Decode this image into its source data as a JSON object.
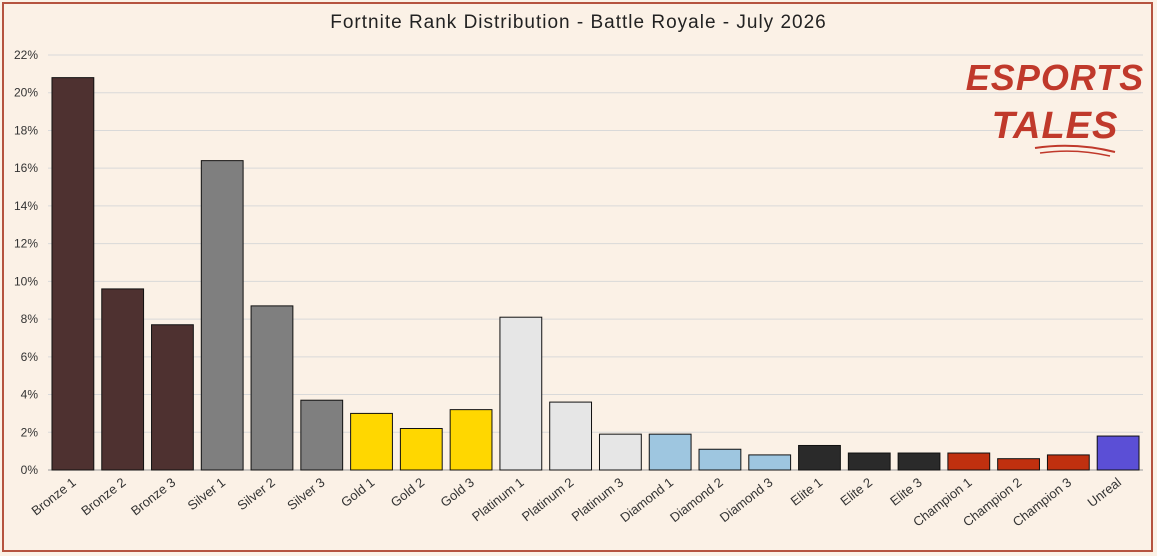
{
  "chart_data": {
    "type": "bar",
    "title": "Fortnite Rank Distribution - Battle Royale - July 2026",
    "categories": [
      "Bronze 1",
      "Bronze 2",
      "Bronze 3",
      "Silver 1",
      "Silver 2",
      "Silver 3",
      "Gold 1",
      "Gold 2",
      "Gold 3",
      "Platinum 1",
      "Platinum 2",
      "Platinum 3",
      "Diamond 1",
      "Diamond 2",
      "Diamond 3",
      "Elite 1",
      "Elite 2",
      "Elite 3",
      "Champion 1",
      "Champion 2",
      "Champion 3",
      "Unreal"
    ],
    "values": [
      20.8,
      9.6,
      7.7,
      16.4,
      8.7,
      3.7,
      3.0,
      2.2,
      3.2,
      8.1,
      3.6,
      1.9,
      1.9,
      1.1,
      0.8,
      1.3,
      0.9,
      0.9,
      0.9,
      0.6,
      0.8,
      1.8
    ],
    "colors": [
      "#4e3130",
      "#4e3130",
      "#4e3130",
      "#7f7f7f",
      "#7f7f7f",
      "#7f7f7f",
      "#ffd700",
      "#ffd700",
      "#ffd700",
      "#e6e6e6",
      "#e6e6e6",
      "#e6e6e6",
      "#9ec6e0",
      "#9ec6e0",
      "#9ec6e0",
      "#2a2a2a",
      "#2a2a2a",
      "#2a2a2a",
      "#c0300f",
      "#c0300f",
      "#c0300f",
      "#5b4fd6"
    ],
    "ylim": [
      0,
      22
    ],
    "yticks": [
      "0%",
      "2%",
      "4%",
      "6%",
      "8%",
      "10%",
      "12%",
      "14%",
      "16%",
      "18%",
      "20%",
      "22%"
    ],
    "xlabel": "",
    "ylabel": "",
    "grid": true
  },
  "logo": {
    "line1": "ESPORTS",
    "line2": "TALES",
    "color": "#c0392b"
  }
}
